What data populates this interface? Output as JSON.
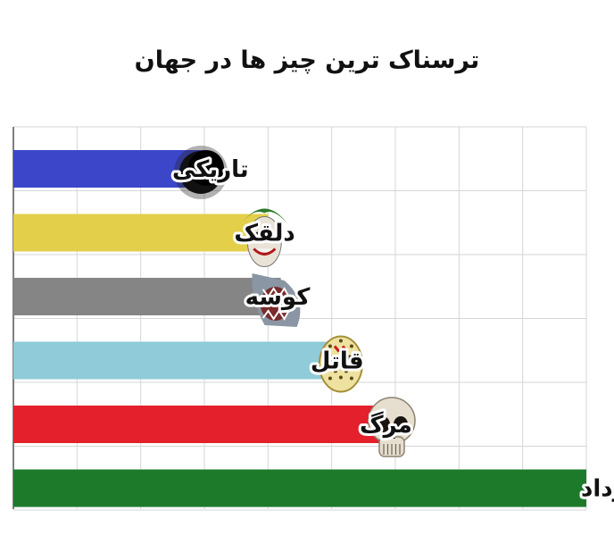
{
  "chart_data": {
    "type": "bar",
    "orientation": "horizontal",
    "title": "ترسناک ترین چیز ها در جهان",
    "xlabel": "",
    "ylabel": "",
    "xlim": [
      0,
      9
    ],
    "grid": true,
    "categories": [
      "تاریکی",
      "دلقک",
      "کوسه",
      "قاتل",
      "مرگ",
      "خرداد"
    ],
    "values": [
      3,
      4,
      4.2,
      5.2,
      6,
      9
    ],
    "colors": [
      "#3b46c9",
      "#e3cf4a",
      "#858585",
      "#8fcbd8",
      "#e3202b",
      "#1e7a2b"
    ],
    "icons": [
      "darkness-blob-icon",
      "joker-face-icon",
      "shark-head-icon",
      "hockey-mask-icon",
      "skull-icon",
      null
    ]
  }
}
